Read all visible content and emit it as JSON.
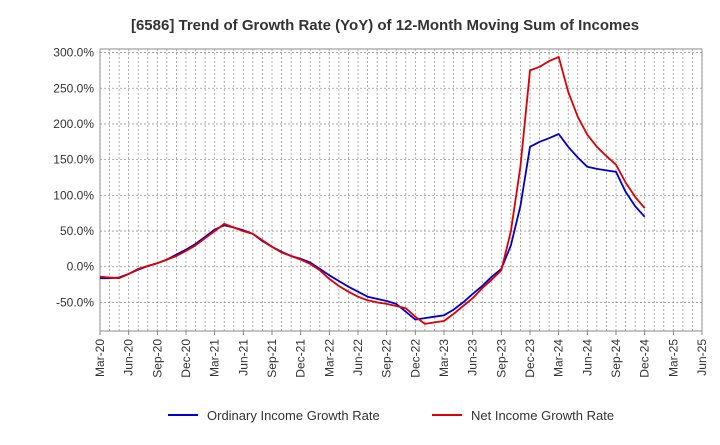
{
  "chart_data": {
    "type": "line",
    "title": "[6586]  Trend of Growth Rate (YoY) of 12-Month Moving Sum of Incomes",
    "xlabel": "",
    "ylabel": "",
    "ylim": [
      -90,
      305
    ],
    "yticks": [
      300,
      250,
      200,
      150,
      100,
      50,
      0,
      -50
    ],
    "ytick_labels": [
      "300.0%",
      "250.0%",
      "200.0%",
      "150.0%",
      "100.0%",
      "50.0%",
      "0.0%",
      "-50.0%"
    ],
    "x_tick_labels": [
      "Mar-20",
      "Jun-20",
      "Sep-20",
      "Dec-20",
      "Mar-21",
      "Jun-21",
      "Sep-21",
      "Dec-21",
      "Mar-22",
      "Jun-22",
      "Sep-22",
      "Dec-22",
      "Mar-23",
      "Jun-23",
      "Sep-23",
      "Dec-23",
      "Mar-24",
      "Jun-24",
      "Sep-24",
      "Dec-24",
      "Mar-25",
      "Jun-25"
    ],
    "grid": true,
    "legend_position": "bottom",
    "series": [
      {
        "name": "Ordinary Income Growth Rate",
        "color": "#0000cc",
        "values": [
          -16,
          -16,
          -15,
          -10,
          -4,
          1,
          5,
          10,
          17,
          24,
          32,
          42,
          52,
          58,
          55,
          51,
          46,
          36,
          28,
          21,
          15,
          11,
          6,
          -3,
          -12,
          -20,
          -28,
          -35,
          -42,
          -45,
          -48,
          -52,
          -63,
          -74,
          -72,
          -70,
          -68,
          -60,
          -50,
          -38,
          -27,
          -14,
          -3,
          30,
          85,
          168,
          175,
          180,
          186,
          168,
          153,
          140,
          137,
          135,
          133,
          105,
          85,
          70
        ]
      },
      {
        "name": "Net Income Growth Rate",
        "color": "#dd0000",
        "values": [
          -14,
          -15,
          -16,
          -10,
          -3,
          1,
          5,
          10,
          15,
          22,
          30,
          40,
          50,
          60,
          55,
          50,
          46,
          37,
          28,
          20,
          15,
          10,
          4,
          -5,
          -17,
          -27,
          -35,
          -42,
          -47,
          -50,
          -52,
          -55,
          -58,
          -70,
          -80,
          -78,
          -76,
          -66,
          -55,
          -44,
          -30,
          -18,
          -5,
          50,
          140,
          275,
          280,
          288,
          294,
          245,
          210,
          185,
          168,
          155,
          143,
          118,
          98,
          82
        ]
      }
    ]
  }
}
